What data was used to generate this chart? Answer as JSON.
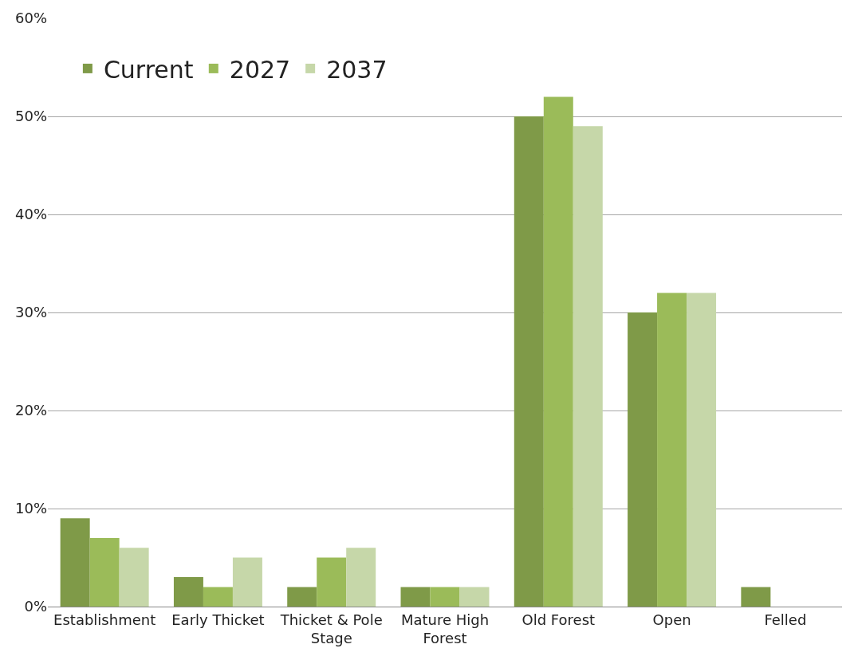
{
  "chart_data": {
    "type": "bar",
    "categories": [
      "Establishment",
      "Early Thicket",
      "Thicket & Pole Stage",
      "Mature High Forest",
      "Old Forest",
      "Open",
      "Felled"
    ],
    "series": [
      {
        "name": "Current",
        "color": "#7f9a48",
        "values": [
          9,
          3,
          2,
          2,
          50,
          30,
          2
        ]
      },
      {
        "name": "2027",
        "color": "#9bbb59",
        "values": [
          7,
          2,
          5,
          2,
          52,
          32,
          0
        ]
      },
      {
        "name": "2037",
        "color": "#c6d7a9",
        "values": [
          6,
          5,
          6,
          2,
          49,
          32,
          0
        ]
      }
    ],
    "ylim": [
      0,
      60
    ],
    "yticks": [
      {
        "value": 0,
        "label": "0%"
      },
      {
        "value": 10,
        "label": "10%"
      },
      {
        "value": 20,
        "label": "20%"
      },
      {
        "value": 30,
        "label": "30%"
      },
      {
        "value": 40,
        "label": "40%"
      },
      {
        "value": 50,
        "label": "50%"
      },
      {
        "value": 60,
        "label": "60%"
      }
    ],
    "grid": "y",
    "legend": "top left"
  }
}
